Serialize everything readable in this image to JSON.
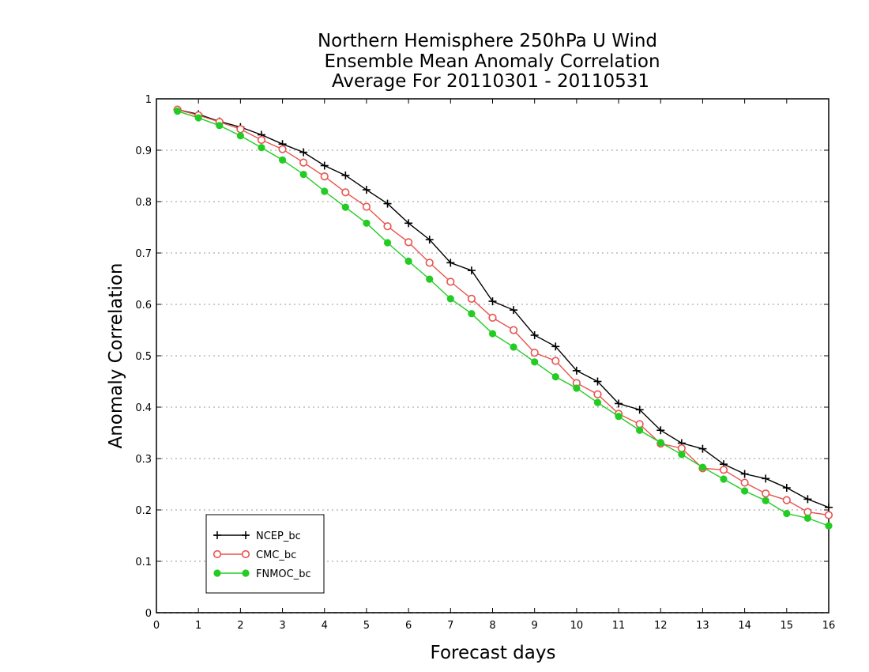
{
  "chart_data": {
    "type": "line",
    "title_lines": [
      "Northern Hemisphere 250hPa U Wind",
      "Ensemble Mean Anomaly Correlation",
      "Average For 20110301 - 20110531"
    ],
    "xlabel": "Forecast days",
    "ylabel": "Anomaly Correlation",
    "xlim": [
      0,
      16
    ],
    "ylim": [
      0,
      1
    ],
    "x_ticks": [
      0,
      1,
      2,
      3,
      4,
      5,
      6,
      7,
      8,
      9,
      10,
      11,
      12,
      13,
      14,
      15,
      16
    ],
    "y_ticks": [
      0,
      0.1,
      0.2,
      0.3,
      0.4,
      0.5,
      0.6,
      0.7,
      0.8,
      0.9,
      1
    ],
    "x_tick_labels": [
      "0",
      "1",
      "2",
      "3",
      "4",
      "5",
      "6",
      "7",
      "8",
      "9",
      "10",
      "11",
      "12",
      "13",
      "14",
      "15",
      "16"
    ],
    "y_tick_labels": [
      "0",
      "0.1",
      "0.2",
      "0.3",
      "0.4",
      "0.5",
      "0.6",
      "0.7",
      "0.8",
      "0.9",
      "1"
    ],
    "grid": "y-dotted",
    "legend_position": "bottom-left",
    "x": [
      0.5,
      1,
      1.5,
      2,
      2.5,
      3,
      3.5,
      4,
      4.5,
      5,
      5.5,
      6,
      6.5,
      7,
      7.5,
      8,
      8.5,
      9,
      9.5,
      10,
      10.5,
      11,
      11.5,
      12,
      12.5,
      13,
      13.5,
      14,
      14.5,
      15,
      15.5,
      16
    ],
    "series": [
      {
        "name": "NCEP_bc",
        "color": "#000000",
        "marker": "plus",
        "values": [
          0.979,
          0.97,
          0.956,
          0.945,
          0.93,
          0.912,
          0.896,
          0.87,
          0.851,
          0.823,
          0.796,
          0.758,
          0.726,
          0.681,
          0.666,
          0.606,
          0.589,
          0.54,
          0.518,
          0.471,
          0.45,
          0.407,
          0.395,
          0.355,
          0.33,
          0.319,
          0.289,
          0.27,
          0.261,
          0.243,
          0.221,
          0.205
        ]
      },
      {
        "name": "CMC_bc",
        "color": "#e8534f",
        "marker": "open-circle",
        "values": [
          0.979,
          0.968,
          0.955,
          0.941,
          0.92,
          0.902,
          0.876,
          0.849,
          0.818,
          0.79,
          0.752,
          0.721,
          0.681,
          0.644,
          0.611,
          0.574,
          0.55,
          0.506,
          0.49,
          0.447,
          0.425,
          0.387,
          0.367,
          0.329,
          0.32,
          0.281,
          0.278,
          0.253,
          0.232,
          0.219,
          0.196,
          0.19
        ]
      },
      {
        "name": "FNMOC_bc",
        "color": "#22cc22",
        "marker": "filled-circle",
        "values": [
          0.976,
          0.963,
          0.948,
          0.928,
          0.905,
          0.881,
          0.853,
          0.82,
          0.789,
          0.758,
          0.72,
          0.684,
          0.649,
          0.611,
          0.582,
          0.543,
          0.517,
          0.488,
          0.459,
          0.437,
          0.409,
          0.382,
          0.355,
          0.331,
          0.308,
          0.283,
          0.26,
          0.237,
          0.218,
          0.193,
          0.184,
          0.169
        ]
      }
    ]
  }
}
